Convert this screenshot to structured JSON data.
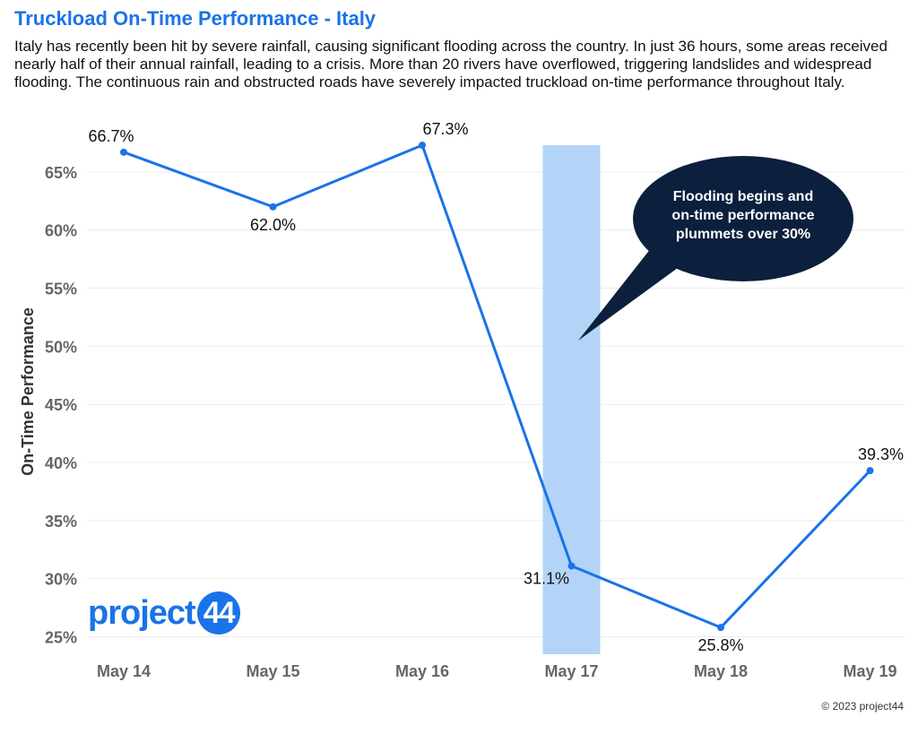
{
  "chart_data": {
    "type": "line",
    "title": "Truckload On-Time Performance - Italy",
    "subtitle": "Italy has recently been hit by severe rainfall, causing significant flooding across the country. In just 36 hours, some areas received nearly half of their annual rainfall, leading to a crisis. More than 20 rivers have overflowed, triggering landslides and widespread flooding. The continuous rain and obstructed roads have severely impacted truckload on-time performance throughout Italy.",
    "ylabel": "On-Time Performance",
    "xlabel": "",
    "categories": [
      "May 14",
      "May 15",
      "May 16",
      "May 17",
      "May 18",
      "May 19"
    ],
    "values": [
      66.7,
      62.0,
      67.3,
      31.1,
      25.8,
      39.3
    ],
    "value_labels": [
      "66.7%",
      "62.0%",
      "67.3%",
      "31.1%",
      "25.8%",
      "39.3%"
    ],
    "ylim": [
      23.5,
      69
    ],
    "yticks": [
      25,
      30,
      35,
      40,
      45,
      50,
      55,
      60,
      65
    ],
    "ytick_labels": [
      "25%",
      "30%",
      "35%",
      "40%",
      "45%",
      "50%",
      "55%",
      "60%",
      "65%"
    ],
    "grid": true,
    "highlight_category": "May 17",
    "highlight_range": [
      23.5,
      67.3
    ],
    "annotation": {
      "lines": [
        "Flooding begins and",
        "on-time performance",
        "plummets over 30%"
      ],
      "target": "May 17"
    },
    "colors": {
      "line": "#1a73e8",
      "highlight": "#b3d4f7",
      "callout": "#0c1f3d",
      "title": "#1a73e8"
    }
  },
  "logo": {
    "word": "project",
    "number": "44"
  },
  "footer": "© 2023 project44"
}
